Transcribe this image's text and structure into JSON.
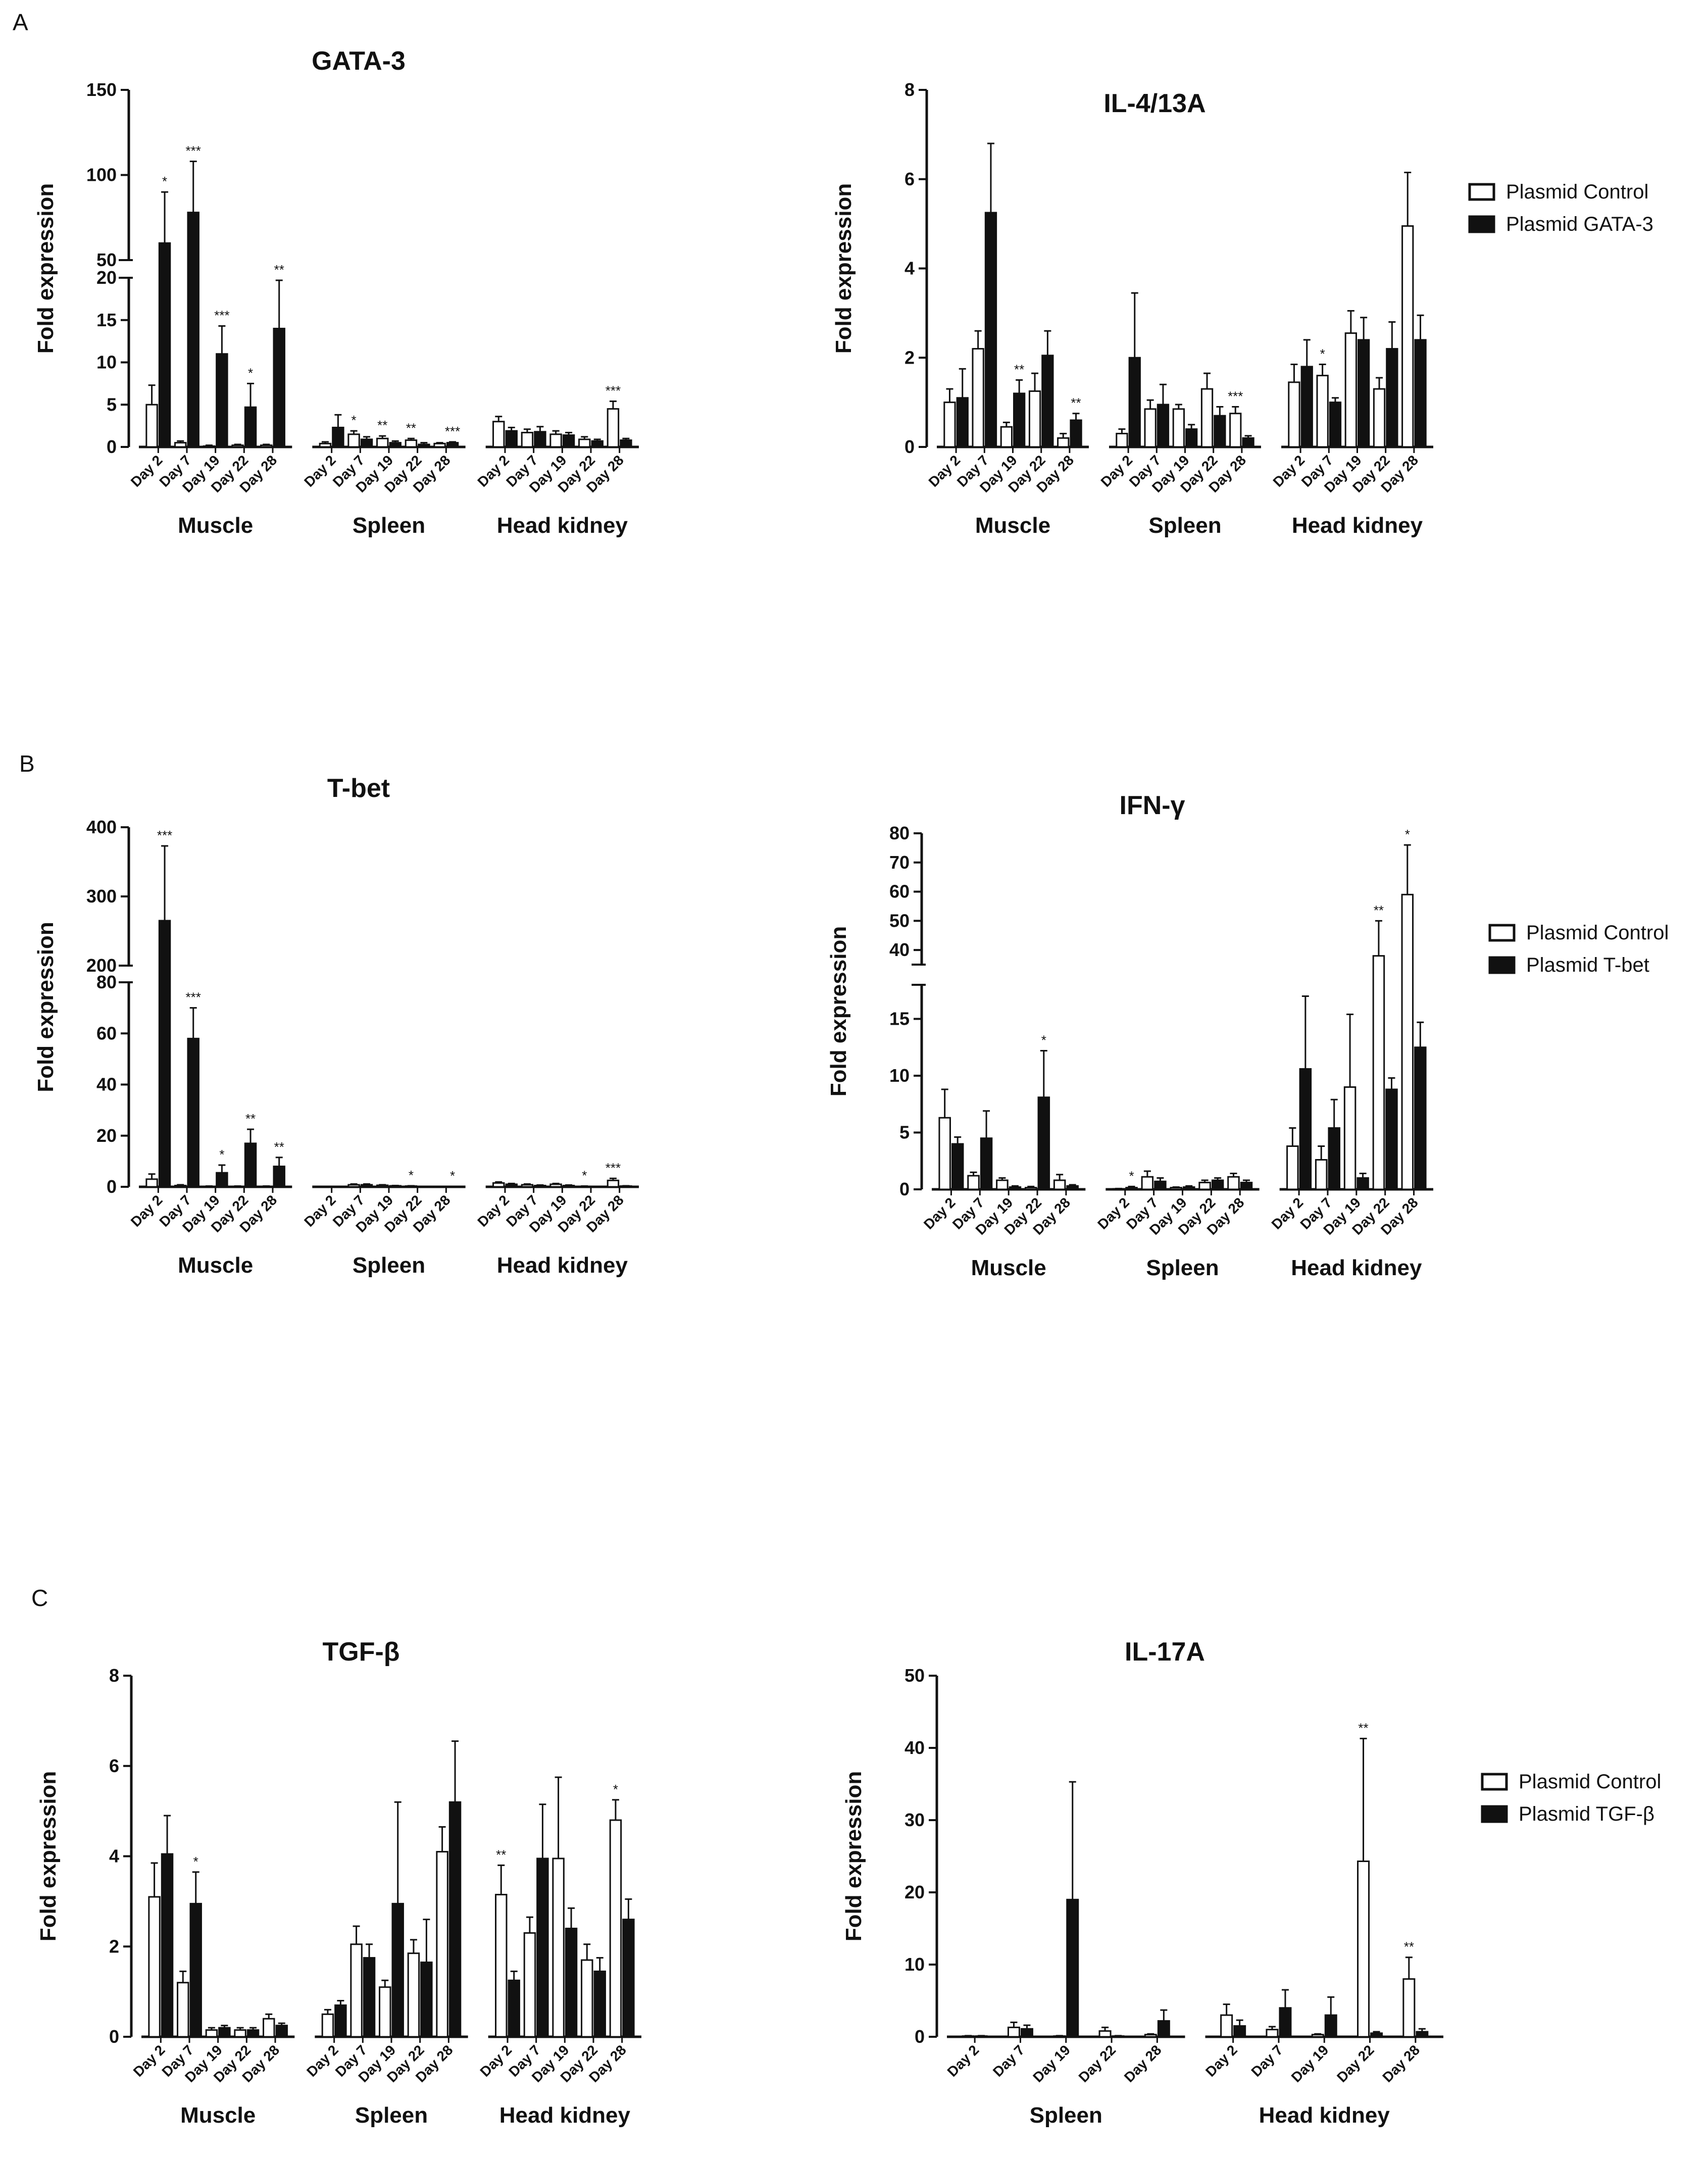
{
  "chart_data": [
    {
      "panel": "A",
      "title": "GATA-3",
      "type": "bar",
      "ylabel": "Fold expression",
      "broken": true,
      "lower_range": [
        0,
        20
      ],
      "upper_range": [
        50,
        150
      ],
      "lower_ticks": [
        0,
        5,
        10,
        15,
        20
      ],
      "upper_ticks": [
        50,
        100,
        150
      ],
      "groups": [
        {
          "name": "Muscle",
          "days": [
            "Day 2",
            "Day 7",
            "Day 19",
            "Day 22",
            "Day 28"
          ],
          "control": [
            5.0,
            0.5,
            0.1,
            0.2,
            0.2
          ],
          "control_err": [
            2.3,
            0.2,
            0.1,
            0.1,
            0.1
          ],
          "treatment": [
            60,
            78,
            11.0,
            4.7,
            14.0
          ],
          "treatment_err": [
            30,
            30,
            3.3,
            2.8,
            5.7
          ],
          "sig": [
            "*",
            "***",
            "***",
            "*",
            "**"
          ]
        },
        {
          "name": "Spleen",
          "days": [
            "Day 2",
            "Day 7",
            "Day 19",
            "Day 22",
            "Day 28"
          ],
          "control": [
            0.4,
            1.5,
            1.0,
            0.8,
            0.4
          ],
          "control_err": [
            0.2,
            0.4,
            0.3,
            0.2,
            0.1
          ],
          "treatment": [
            2.3,
            0.9,
            0.5,
            0.3,
            0.5
          ],
          "treatment_err": [
            1.5,
            0.3,
            0.2,
            0.2,
            0.1
          ],
          "sig": [
            "",
            "*",
            "**",
            "**",
            "***"
          ]
        },
        {
          "name": "Head kidney",
          "days": [
            "Day 2",
            "Day 7",
            "Day 19",
            "Day 22",
            "Day 28"
          ],
          "control": [
            3.0,
            1.7,
            1.5,
            0.9,
            4.5
          ],
          "control_err": [
            0.6,
            0.4,
            0.4,
            0.3,
            0.9
          ],
          "treatment": [
            1.9,
            1.8,
            1.4,
            0.7,
            0.8
          ],
          "treatment_err": [
            0.4,
            0.6,
            0.3,
            0.2,
            0.2
          ],
          "sig": [
            "",
            "",
            "",
            "",
            "***"
          ]
        }
      ]
    },
    {
      "panel": "",
      "title": "IL-4/13A",
      "type": "bar",
      "ylabel": "Fold expression",
      "broken": false,
      "ylim": [
        0,
        8
      ],
      "yticks": [
        0,
        2,
        4,
        6,
        8
      ],
      "legend": [
        "Plasmid Control",
        "Plasmid GATA-3"
      ],
      "groups": [
        {
          "name": "Muscle",
          "days": [
            "Day 2",
            "Day 7",
            "Day 19",
            "Day 22",
            "Day 28"
          ],
          "control": [
            1.0,
            2.2,
            0.45,
            1.25,
            0.2
          ],
          "control_err": [
            0.3,
            0.4,
            0.1,
            0.4,
            0.1
          ],
          "treatment": [
            1.1,
            5.25,
            1.2,
            2.05,
            0.6
          ],
          "treatment_err": [
            0.65,
            1.55,
            0.3,
            0.55,
            0.15
          ],
          "sig": [
            "",
            "",
            "**",
            "",
            "**"
          ]
        },
        {
          "name": "Spleen",
          "days": [
            "Day 2",
            "Day 7",
            "Day 19",
            "Day 22",
            "Day 28"
          ],
          "control": [
            0.3,
            0.85,
            0.85,
            1.3,
            0.75
          ],
          "control_err": [
            0.1,
            0.2,
            0.1,
            0.35,
            0.15
          ],
          "treatment": [
            2.0,
            0.95,
            0.4,
            0.7,
            0.2
          ],
          "treatment_err": [
            1.45,
            0.45,
            0.1,
            0.2,
            0.05
          ],
          "sig": [
            "",
            "",
            "",
            "",
            "***"
          ]
        },
        {
          "name": "Head kidney",
          "days": [
            "Day 2",
            "Day 7",
            "Day 19",
            "Day 22",
            "Day 28"
          ],
          "control": [
            1.45,
            1.6,
            2.55,
            1.3,
            4.95
          ],
          "control_err": [
            0.4,
            0.25,
            0.5,
            0.25,
            1.2
          ],
          "treatment": [
            1.8,
            1.0,
            2.4,
            2.2,
            2.4
          ],
          "treatment_err": [
            0.6,
            0.1,
            0.5,
            0.6,
            0.55
          ],
          "sig": [
            "",
            "*",
            "",
            "",
            ""
          ]
        }
      ]
    },
    {
      "panel": "B",
      "title": "T-bet",
      "type": "bar",
      "ylabel": "Fold expression",
      "broken": true,
      "lower_range": [
        0,
        80
      ],
      "upper_range": [
        200,
        400
      ],
      "lower_ticks": [
        0,
        20,
        40,
        60,
        80
      ],
      "upper_ticks": [
        200,
        300,
        400
      ],
      "groups": [
        {
          "name": "Muscle",
          "days": [
            "Day 2",
            "Day 7",
            "Day 19",
            "Day 22",
            "Day 28"
          ],
          "control": [
            3.0,
            0.5,
            0.2,
            0.2,
            0.2
          ],
          "control_err": [
            2.0,
            0.3,
            0.1,
            0.1,
            0.1
          ],
          "treatment": [
            265,
            58,
            5.5,
            17.0,
            8.0
          ],
          "treatment_err": [
            108,
            12,
            3.0,
            5.5,
            3.5
          ],
          "sig": [
            "***",
            "***",
            "*",
            "**",
            "**"
          ]
        },
        {
          "name": "Spleen",
          "days": [
            "Day 2",
            "Day 7",
            "Day 19",
            "Day 22",
            "Day 28"
          ],
          "control": [
            0.1,
            0.8,
            0.6,
            0.3,
            0.1
          ],
          "control_err": [
            0.05,
            0.3,
            0.2,
            0.1,
            0.05
          ],
          "treatment": [
            0.1,
            0.8,
            0.4,
            0.1,
            0.1
          ],
          "treatment_err": [
            0.05,
            0.3,
            0.1,
            0.05,
            0.05
          ],
          "sig": [
            "",
            "",
            "",
            "*",
            "*"
          ]
        },
        {
          "name": "Head kidney",
          "days": [
            "Day 2",
            "Day 7",
            "Day 19",
            "Day 22",
            "Day 28"
          ],
          "control": [
            1.5,
            0.8,
            1.0,
            0.2,
            2.5
          ],
          "control_err": [
            0.4,
            0.3,
            0.3,
            0.1,
            0.8
          ],
          "treatment": [
            1.0,
            0.5,
            0.5,
            0.1,
            0.3
          ],
          "treatment_err": [
            0.3,
            0.2,
            0.2,
            0.05,
            0.1
          ],
          "sig": [
            "",
            "",
            "",
            "*",
            "***"
          ]
        }
      ]
    },
    {
      "panel": "",
      "title": "IFN-γ",
      "type": "bar",
      "ylabel": "Fold expression",
      "broken": true,
      "lower_range": [
        0,
        18
      ],
      "upper_range": [
        35,
        80
      ],
      "lower_ticks": [
        0,
        5,
        10,
        15
      ],
      "upper_ticks": [
        40,
        50,
        60,
        70,
        80
      ],
      "legend": [
        "Plasmid Control",
        "Plasmid T-bet"
      ],
      "groups": [
        {
          "name": "Muscle",
          "days": [
            "Day 2",
            "Day 7",
            "Day 19",
            "Day 22",
            "Day 28"
          ],
          "control": [
            6.3,
            1.2,
            0.8,
            0.15,
            0.8
          ],
          "control_err": [
            2.5,
            0.3,
            0.2,
            0.1,
            0.5
          ],
          "treatment": [
            4.0,
            4.5,
            0.2,
            8.1,
            0.3
          ],
          "treatment_err": [
            0.6,
            2.4,
            0.1,
            4.1,
            0.1
          ],
          "sig": [
            "",
            "",
            "",
            "*",
            ""
          ]
        },
        {
          "name": "Spleen",
          "days": [
            "Day 2",
            "Day 7",
            "Day 19",
            "Day 22",
            "Day 28"
          ],
          "control": [
            0.05,
            1.1,
            0.15,
            0.6,
            1.1
          ],
          "control_err": [
            0.02,
            0.5,
            0.05,
            0.2,
            0.3
          ],
          "treatment": [
            0.15,
            0.7,
            0.2,
            0.8,
            0.6
          ],
          "treatment_err": [
            0.1,
            0.3,
            0.1,
            0.2,
            0.2
          ],
          "sig": [
            "*",
            "",
            "",
            "",
            ""
          ]
        },
        {
          "name": "Head kidney",
          "days": [
            "Day 2",
            "Day 7",
            "Day 19",
            "Day 22",
            "Day 28"
          ],
          "control": [
            3.8,
            2.6,
            9.0,
            38,
            59
          ],
          "control_err": [
            1.6,
            1.2,
            6.4,
            12,
            17
          ],
          "treatment": [
            10.6,
            5.4,
            1.0,
            8.8,
            12.5
          ],
          "treatment_err": [
            6.4,
            2.5,
            0.4,
            1.0,
            2.2
          ],
          "sig": [
            "",
            "",
            "",
            "**",
            "*"
          ]
        }
      ]
    },
    {
      "panel": "C",
      "title": "TGF-β",
      "type": "bar",
      "ylabel": "Fold expression",
      "broken": false,
      "ylim": [
        0,
        8
      ],
      "yticks": [
        0,
        2,
        4,
        6,
        8
      ],
      "groups": [
        {
          "name": "Muscle",
          "days": [
            "Day 2",
            "Day 7",
            "Day 19",
            "Day 22",
            "Day 28"
          ],
          "control": [
            3.1,
            1.2,
            0.15,
            0.15,
            0.4
          ],
          "control_err": [
            0.75,
            0.25,
            0.05,
            0.05,
            0.1
          ],
          "treatment": [
            4.05,
            2.95,
            0.2,
            0.15,
            0.25
          ],
          "treatment_err": [
            0.85,
            0.7,
            0.05,
            0.05,
            0.05
          ],
          "sig": [
            "",
            "*",
            "",
            "",
            ""
          ]
        },
        {
          "name": "Spleen",
          "days": [
            "Day 2",
            "Day 7",
            "Day 19",
            "Day 22",
            "Day 28"
          ],
          "control": [
            0.5,
            2.05,
            1.1,
            1.85,
            4.1
          ],
          "control_err": [
            0.1,
            0.4,
            0.15,
            0.3,
            0.55
          ],
          "treatment": [
            0.7,
            1.75,
            2.95,
            1.65,
            5.2
          ],
          "treatment_err": [
            0.1,
            0.3,
            2.25,
            0.95,
            1.35
          ],
          "sig": [
            "",
            "",
            "",
            "",
            ""
          ]
        },
        {
          "name": "Head kidney",
          "days": [
            "Day 2",
            "Day 7",
            "Day 19",
            "Day 22",
            "Day 28"
          ],
          "control": [
            3.15,
            2.3,
            3.95,
            1.7,
            4.8
          ],
          "control_err": [
            0.65,
            0.35,
            1.8,
            0.35,
            0.45
          ],
          "treatment": [
            1.25,
            3.95,
            2.4,
            1.45,
            2.6
          ],
          "treatment_err": [
            0.2,
            1.2,
            0.45,
            0.3,
            0.45
          ],
          "sig": [
            "**",
            "",
            "",
            "",
            "*"
          ]
        }
      ]
    },
    {
      "panel": "",
      "title": "IL-17A",
      "type": "bar",
      "ylabel": "Fold expression",
      "broken": false,
      "ylim": [
        0,
        50
      ],
      "yticks": [
        0,
        10,
        20,
        30,
        40,
        50
      ],
      "legend": [
        "Plasmid Control",
        "Plasmid TGF-β"
      ],
      "groups": [
        {
          "name": "Spleen",
          "days": [
            "Day 2",
            "Day 7",
            "Day 19",
            "Day 22",
            "Day 28"
          ],
          "control": [
            0.1,
            1.3,
            0.1,
            0.8,
            0.3
          ],
          "control_err": [
            0.05,
            0.7,
            0.05,
            0.5,
            0.1
          ],
          "treatment": [
            0.1,
            1.1,
            19.0,
            0.1,
            2.2
          ],
          "treatment_err": [
            0.05,
            0.5,
            16.3,
            0.05,
            1.5
          ],
          "sig": [
            "",
            "",
            "",
            "",
            ""
          ]
        },
        {
          "name": "Head kidney",
          "days": [
            "Day 2",
            "Day 7",
            "Day 19",
            "Day 22",
            "Day 28"
          ],
          "control": [
            3.0,
            1.0,
            0.3,
            24.3,
            8.0
          ],
          "control_err": [
            1.5,
            0.4,
            0.1,
            17.0,
            3.0
          ],
          "treatment": [
            1.5,
            4.0,
            3.0,
            0.5,
            0.7
          ],
          "treatment_err": [
            0.8,
            2.5,
            2.5,
            0.2,
            0.4
          ],
          "sig": [
            "",
            "",
            "",
            "**",
            "**"
          ]
        }
      ]
    }
  ]
}
